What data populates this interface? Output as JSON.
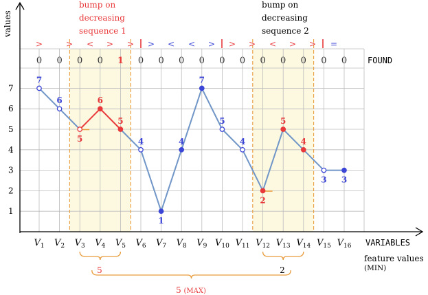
{
  "chart_data": {
    "type": "line",
    "y_axis_label": "values",
    "x_axis_label": "VARIABLES",
    "ylim": [
      0,
      7
    ],
    "y_ticks": [
      "1",
      "2",
      "3",
      "4",
      "5",
      "6",
      "7"
    ],
    "grid": true,
    "variables": [
      "V1",
      "V2",
      "V3",
      "V4",
      "V5",
      "V6",
      "V7",
      "V8",
      "V9",
      "V10",
      "V11",
      "V12",
      "V13",
      "V14",
      "V15",
      "V16"
    ],
    "values": [
      7,
      6,
      5,
      6,
      5,
      4,
      1,
      4,
      7,
      5,
      4,
      2,
      5,
      4,
      3,
      3
    ],
    "point_colors": [
      "blue",
      "blue",
      "red",
      "red",
      "red",
      "blue",
      "blue",
      "blue",
      "blue",
      "blue",
      "blue",
      "red",
      "red",
      "red",
      "blue",
      "blue"
    ],
    "point_markers": [
      "open",
      "open",
      "open",
      "filled",
      "filled",
      "open",
      "filled",
      "filled",
      "filled",
      "open",
      "open",
      "filled",
      "filled",
      "filled",
      "open",
      "filled"
    ],
    "signature": [
      ">",
      ">",
      "<",
      ">",
      ">",
      "|",
      ">",
      "<",
      "<",
      ">",
      "|",
      ">",
      ">",
      "<",
      ">",
      ">",
      "|",
      "="
    ],
    "signature_colors": [
      "red",
      "red",
      "red",
      "red",
      "red",
      "red",
      "blue",
      "blue",
      "blue",
      "blue",
      "red",
      "red",
      "red",
      "red",
      "red",
      "red",
      "red",
      "blue"
    ],
    "found_label": "FOUND",
    "found_values": [
      "0",
      "0",
      "0",
      "0",
      "1",
      "0",
      "0",
      "0",
      "0",
      "0",
      "0",
      "0",
      "0",
      "0",
      "0",
      "0"
    ],
    "annotations": [
      {
        "text_lines": [
          "bump on",
          "decreasing",
          "sequence 1"
        ],
        "color": "red"
      },
      {
        "text_lines": [
          "bump on",
          "decreasing",
          "sequence 2"
        ],
        "color": "black"
      }
    ],
    "shaded_regions": [
      {
        "from": "V3",
        "to": "V5"
      },
      {
        "from": "V12",
        "to": "V14"
      }
    ],
    "feature_values_label": [
      "feature values",
      "(MIN)"
    ],
    "braces": [
      {
        "from": "V3",
        "to": "V5",
        "value": "5",
        "value_color": "red"
      },
      {
        "from": "V12",
        "to": "V14",
        "value": "2",
        "value_color": "black"
      },
      {
        "from": "V4",
        "to": "V13",
        "value": "5 (MAX)",
        "value_color": "red"
      }
    ]
  },
  "colors": {
    "line": "#7096c8",
    "blue": "#3b45d6",
    "red": "#e8383a",
    "orange": "#e89b3a",
    "shade": "#fdf9e1",
    "grid": "#bbbbbb",
    "axis": "#000000"
  }
}
